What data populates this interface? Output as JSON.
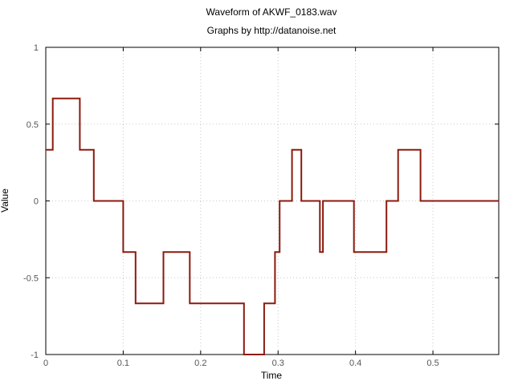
{
  "chart_data": {
    "type": "line",
    "title": "Waveform of AKWF_0183.wav",
    "subtitle": "Graphs by http://datanoise.net",
    "xlabel": "Time",
    "ylabel": "Value",
    "xlim": [
      0,
      0.585
    ],
    "ylim": [
      -1,
      1
    ],
    "x_ticks": [
      0,
      0.1,
      0.2,
      0.3,
      0.4,
      0.5
    ],
    "x_tick_labels": [
      "0",
      "0.1",
      "0.2",
      "0.3",
      "0.4",
      "0.5"
    ],
    "y_ticks": [
      1,
      0.5,
      0,
      -0.5,
      -1
    ],
    "y_tick_labels": [
      "1",
      "0.5",
      "0",
      "-0.5",
      "-1"
    ],
    "grid": true,
    "legend": "none",
    "series": [
      {
        "color": "#8b1a0e",
        "x": [
          0,
          0.009,
          0.009,
          0.044,
          0.044,
          0.062,
          0.062,
          0.1,
          0.1,
          0.116,
          0.116,
          0.152,
          0.152,
          0.186,
          0.186,
          0.256,
          0.256,
          0.282,
          0.282,
          0.296,
          0.296,
          0.302,
          0.302,
          0.318,
          0.318,
          0.33,
          0.33,
          0.354,
          0.354,
          0.358,
          0.358,
          0.398,
          0.398,
          0.44,
          0.44,
          0.455,
          0.455,
          0.484,
          0.484,
          0.585
        ],
        "y": [
          0.333,
          0.333,
          0.667,
          0.667,
          0.333,
          0.333,
          0,
          0,
          -0.333,
          -0.333,
          -0.667,
          -0.667,
          -0.333,
          -0.333,
          -0.667,
          -0.667,
          -1,
          -1,
          -0.667,
          -0.667,
          -0.333,
          -0.333,
          0,
          0,
          0.333,
          0.333,
          0,
          0,
          -0.333,
          -0.333,
          0,
          0,
          -0.333,
          -0.333,
          0,
          0,
          0.333,
          0.333,
          0,
          0
        ]
      }
    ]
  }
}
